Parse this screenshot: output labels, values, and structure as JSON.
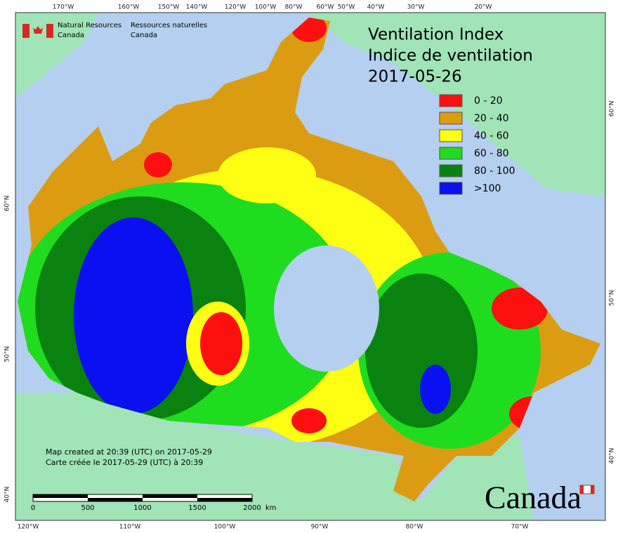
{
  "title": [
    "Ventilation Index",
    "Indice de ventilation",
    "2017-05-26"
  ],
  "agency": {
    "en": [
      "Natural Resources",
      "Canada"
    ],
    "fr": [
      "Ressources naturelles",
      "Canada"
    ]
  },
  "legend": [
    {
      "label": "0 - 20",
      "color": "#ff1010"
    },
    {
      "label": "20 - 40",
      "color": "#dc9c12"
    },
    {
      "label": "40 - 60",
      "color": "#ffff14"
    },
    {
      "label": "60 - 80",
      "color": "#1fdc1f"
    },
    {
      "label": "80 - 100",
      "color": "#0a820f"
    },
    {
      "label": ">100",
      "color": "#0a10f0"
    }
  ],
  "top_labels": [
    "170°W",
    "160°W",
    "150°W",
    "140°W",
    "120°W",
    "100°W",
    "80°W",
    "60°W",
    "50°W",
    "40°W",
    "30°W",
    "20°W"
  ],
  "bottom_labels": [
    "120°W",
    "110°W",
    "100°W",
    "90°W",
    "80°W",
    "70°W"
  ],
  "left_labels": [
    "60°N",
    "50°N",
    "40°N"
  ],
  "right_labels": [
    "60°N",
    "50°N",
    "40°N"
  ],
  "credits": [
    "Map created at 20:39 (UTC) on 2017-05-29",
    "Carte créée le 2017-05-29 (UTC) à 20:39"
  ],
  "scale": {
    "ticks": [
      "0",
      "500",
      "1000",
      "1500",
      "2000"
    ],
    "unit": "km"
  },
  "wordmark": "Canada"
}
